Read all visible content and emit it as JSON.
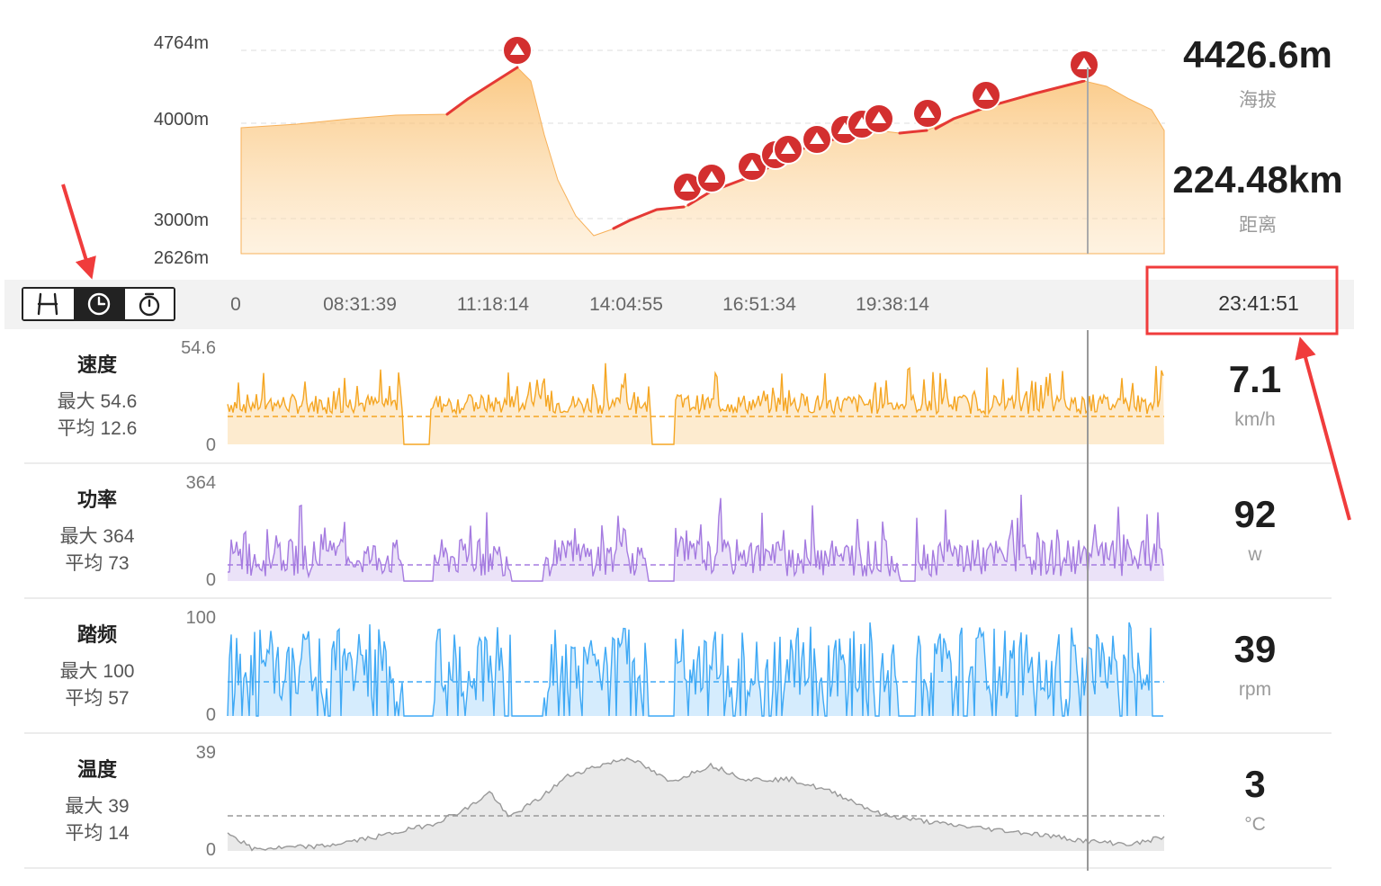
{
  "elevation": {
    "y_labels": [
      "4764m",
      "4000m",
      "3000m",
      "2626m"
    ],
    "current_value": "4426.6m",
    "current_label": "海拔",
    "distance_value": "224.48km",
    "distance_label": "距离"
  },
  "time_axis": {
    "ticks": [
      "0",
      "08:31:39",
      "11:18:14",
      "14:04:55",
      "16:51:34",
      "19:38:14"
    ],
    "current": "23:41:51"
  },
  "toggle": {
    "icons": [
      "road-icon",
      "clock-icon",
      "stopwatch-icon"
    ],
    "active": "clock-icon"
  },
  "metrics": [
    {
      "key": "speed",
      "title": "速度",
      "max": "最大 54.6",
      "avg": "平均 12.6",
      "y_max": "54.6",
      "y_min": "0",
      "value": "7.1",
      "unit": "km/h",
      "color": "#f5a623"
    },
    {
      "key": "power",
      "title": "功率",
      "max": "最大 364",
      "avg": "平均 73",
      "y_max": "364",
      "y_min": "0",
      "value": "92",
      "unit": "w",
      "color": "#a57be0"
    },
    {
      "key": "cadence",
      "title": "踏频",
      "max": "最大 100",
      "avg": "平均 57",
      "y_max": "100",
      "y_min": "0",
      "value": "39",
      "unit": "rpm",
      "color": "#3fa9f5"
    },
    {
      "key": "temp",
      "title": "温度",
      "max": "最大 39",
      "avg": "平均 14",
      "y_max": "39",
      "y_min": "0",
      "value": "3",
      "unit": "°C",
      "color": "#999999"
    }
  ],
  "colors": {
    "elevation_fill": "#fbc77f",
    "climb_line": "#e53935",
    "marker": "#d32f2f",
    "annotation": "#f03c3c"
  }
}
